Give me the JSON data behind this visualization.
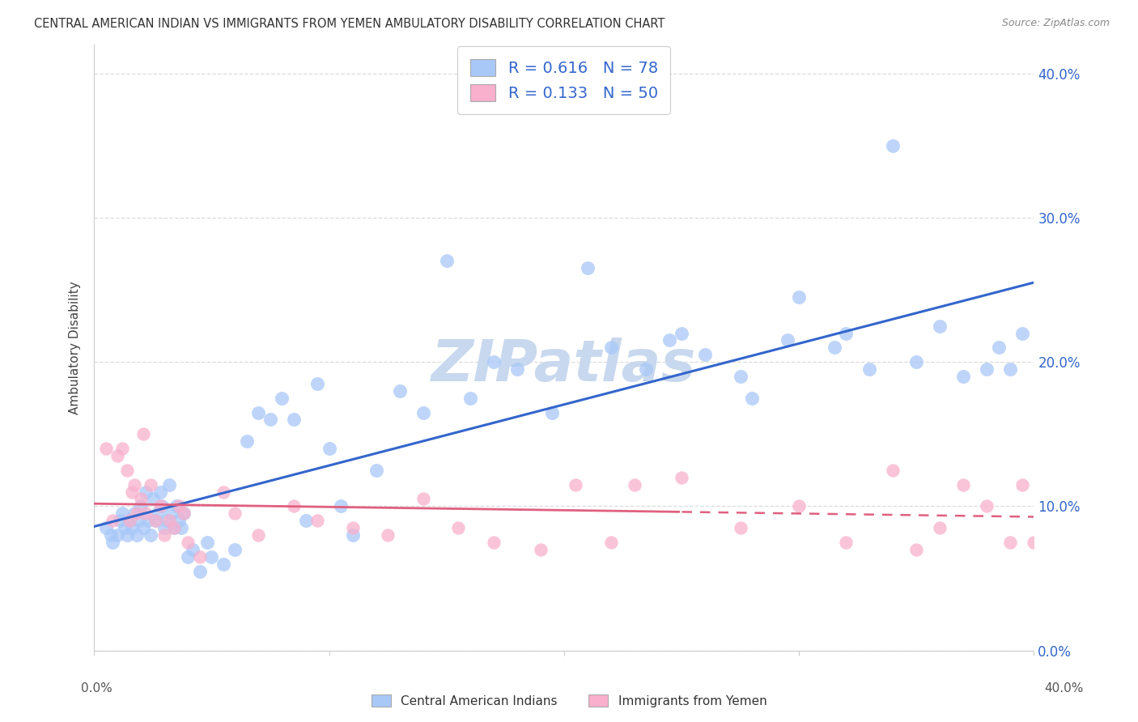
{
  "title": "CENTRAL AMERICAN INDIAN VS IMMIGRANTS FROM YEMEN AMBULATORY DISABILITY CORRELATION CHART",
  "source": "Source: ZipAtlas.com",
  "ylabel": "Ambulatory Disability",
  "ytick_vals": [
    0.0,
    10.0,
    20.0,
    30.0,
    40.0
  ],
  "xlim": [
    0.0,
    40.0
  ],
  "ylim": [
    0.0,
    42.0
  ],
  "blue_R": 0.616,
  "blue_N": 78,
  "pink_R": 0.133,
  "pink_N": 50,
  "blue_color": "#A8C8F8",
  "pink_color": "#F8B0CC",
  "blue_line_color": "#3366CC",
  "pink_line_color": "#E06080",
  "legend_label_blue": "Central American Indians",
  "legend_label_pink": "Immigrants from Yemen",
  "blue_x": [
    0.5,
    0.7,
    0.8,
    1.0,
    1.1,
    1.2,
    1.3,
    1.4,
    1.5,
    1.6,
    1.7,
    1.8,
    1.9,
    2.0,
    2.1,
    2.2,
    2.3,
    2.4,
    2.5,
    2.6,
    2.7,
    2.8,
    2.9,
    3.0,
    3.1,
    3.2,
    3.3,
    3.4,
    3.5,
    3.6,
    3.7,
    3.8,
    4.0,
    4.2,
    4.5,
    4.8,
    5.0,
    5.5,
    6.0,
    6.5,
    7.0,
    7.5,
    8.0,
    8.5,
    9.0,
    9.5,
    10.0,
    10.5,
    11.0,
    12.0,
    13.0,
    14.0,
    15.0,
    16.0,
    17.0,
    18.0,
    19.5,
    21.0,
    22.0,
    23.5,
    24.5,
    25.0,
    26.0,
    27.5,
    28.0,
    29.5,
    30.0,
    31.5,
    32.0,
    33.0,
    34.0,
    35.0,
    36.0,
    37.0,
    38.0,
    38.5,
    39.0,
    39.5
  ],
  "blue_y": [
    8.5,
    8.0,
    7.5,
    8.0,
    9.0,
    9.5,
    8.5,
    8.0,
    9.0,
    8.5,
    9.5,
    8.0,
    9.0,
    10.0,
    8.5,
    11.0,
    9.0,
    8.0,
    10.5,
    9.0,
    9.5,
    11.0,
    10.0,
    8.5,
    9.0,
    11.5,
    9.5,
    8.5,
    10.0,
    9.0,
    8.5,
    9.5,
    6.5,
    7.0,
    5.5,
    7.5,
    6.5,
    6.0,
    7.0,
    14.5,
    16.5,
    16.0,
    17.5,
    16.0,
    9.0,
    18.5,
    14.0,
    10.0,
    8.0,
    12.5,
    18.0,
    16.5,
    27.0,
    17.5,
    20.0,
    19.5,
    16.5,
    26.5,
    21.0,
    19.5,
    21.5,
    22.0,
    20.5,
    19.0,
    17.5,
    21.5,
    24.5,
    21.0,
    22.0,
    19.5,
    35.0,
    20.0,
    22.5,
    19.0,
    19.5,
    21.0,
    19.5,
    22.0
  ],
  "pink_x": [
    0.5,
    0.8,
    1.0,
    1.2,
    1.4,
    1.5,
    1.6,
    1.7,
    1.8,
    2.0,
    2.1,
    2.2,
    2.4,
    2.6,
    2.8,
    3.0,
    3.2,
    3.4,
    3.6,
    3.8,
    4.0,
    4.5,
    5.5,
    6.0,
    7.0,
    8.5,
    9.5,
    11.0,
    12.5,
    14.0,
    15.5,
    17.0,
    19.0,
    20.5,
    22.0,
    23.0,
    25.0,
    27.5,
    30.0,
    32.0,
    34.0,
    35.0,
    36.0,
    37.0,
    38.0,
    39.0,
    39.5,
    40.0,
    40.5,
    41.0
  ],
  "pink_y": [
    14.0,
    9.0,
    13.5,
    14.0,
    12.5,
    9.0,
    11.0,
    11.5,
    9.5,
    10.5,
    15.0,
    9.5,
    11.5,
    9.0,
    10.0,
    8.0,
    9.0,
    8.5,
    10.0,
    9.5,
    7.5,
    6.5,
    11.0,
    9.5,
    8.0,
    10.0,
    9.0,
    8.5,
    8.0,
    10.5,
    8.5,
    7.5,
    7.0,
    11.5,
    7.5,
    11.5,
    12.0,
    8.5,
    10.0,
    7.5,
    12.5,
    7.0,
    8.5,
    11.5,
    10.0,
    7.5,
    11.5,
    7.5,
    9.0,
    12.5
  ],
  "pink_solid_end_x": 25.0,
  "background_color": "#FFFFFF",
  "grid_color": "#DDDDDD",
  "watermark_text": "ZIPatlas",
  "watermark_color": "#C8D8EE"
}
